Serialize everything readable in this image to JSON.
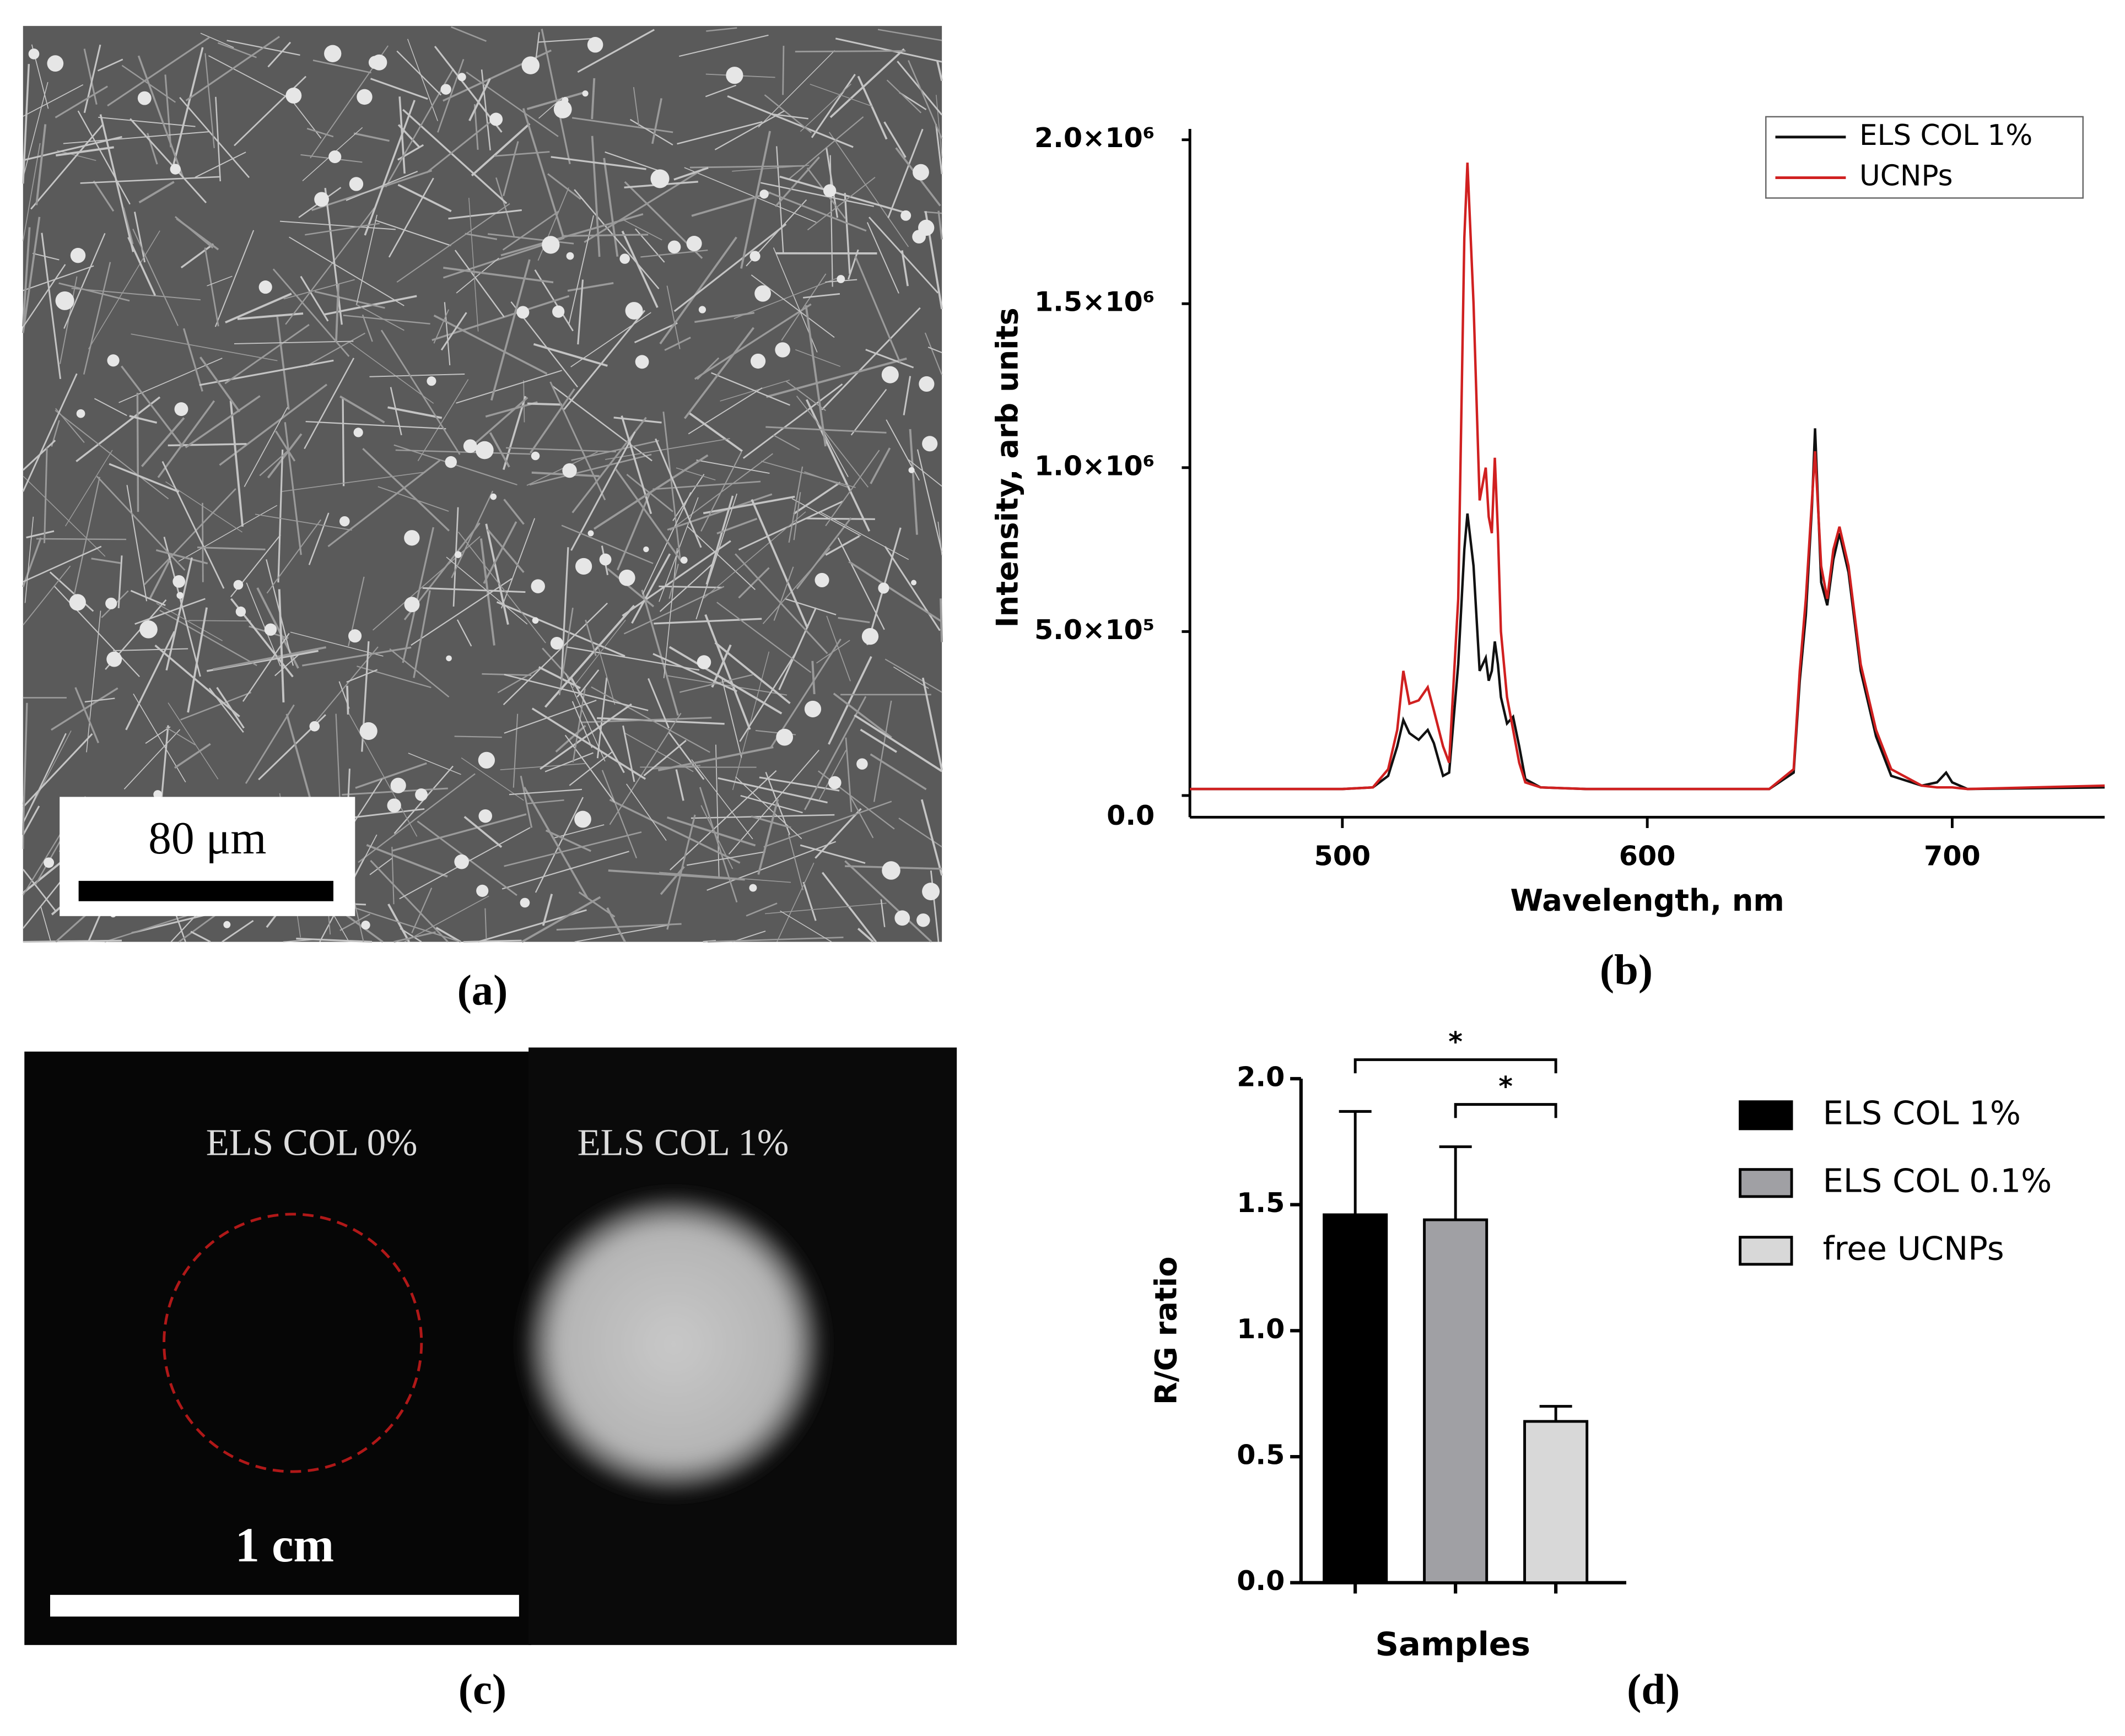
{
  "panels": {
    "a": {
      "label": "(a)",
      "scale_bar": "80 μm"
    },
    "b": {
      "label": "(b)"
    },
    "c": {
      "label": "(c)",
      "left_label": "ELS COL 0%",
      "right_label": "ELS COL 1%",
      "scale_bar": "1 cm"
    },
    "d": {
      "label": "(d)"
    }
  },
  "chart_data": [
    {
      "type": "line",
      "x_label": "Wavelength, nm",
      "y_label": "Intensity, arb units",
      "x": [
        450,
        500,
        510,
        515,
        518,
        520,
        522,
        525,
        528,
        530,
        533,
        535,
        538,
        540,
        541,
        543,
        545,
        547,
        548,
        549,
        550,
        551,
        552,
        554,
        556,
        558,
        560,
        565,
        580,
        640,
        648,
        650,
        652,
        654,
        655,
        657,
        659,
        661,
        663,
        666,
        670,
        675,
        680,
        690,
        695,
        698,
        700,
        705,
        750
      ],
      "series": [
        {
          "name": "ELS COL 1%",
          "color": "#111111",
          "values": [
            20000,
            20000,
            25000,
            60000,
            150000,
            230000,
            190000,
            170000,
            200000,
            160000,
            60000,
            70000,
            400000,
            750000,
            860000,
            700000,
            380000,
            420000,
            350000,
            380000,
            470000,
            400000,
            300000,
            220000,
            240000,
            150000,
            50000,
            25000,
            20000,
            20000,
            70000,
            350000,
            550000,
            880000,
            1120000,
            650000,
            580000,
            720000,
            800000,
            680000,
            380000,
            180000,
            60000,
            30000,
            40000,
            70000,
            40000,
            20000,
            25000
          ]
        },
        {
          "name": "UCNPs",
          "color": "#d02020",
          "values": [
            20000,
            20000,
            25000,
            80000,
            200000,
            380000,
            280000,
            290000,
            330000,
            260000,
            150000,
            100000,
            600000,
            1700000,
            1930000,
            1500000,
            900000,
            1000000,
            850000,
            800000,
            1030000,
            800000,
            500000,
            300000,
            200000,
            100000,
            40000,
            25000,
            20000,
            20000,
            80000,
            380000,
            600000,
            900000,
            1050000,
            700000,
            600000,
            750000,
            820000,
            700000,
            400000,
            200000,
            80000,
            30000,
            25000,
            25000,
            25000,
            20000,
            30000
          ]
        }
      ],
      "xlim": [
        450,
        750
      ],
      "xticks": [
        500,
        600,
        700
      ],
      "ylim": [
        0,
        2000000
      ],
      "yticks": [
        {
          "value": 0,
          "label": "0.0"
        },
        {
          "value": 500000,
          "label": "5.0×10⁵"
        },
        {
          "value": 1000000,
          "label": "1.0×10⁶"
        },
        {
          "value": 1500000,
          "label": "1.5×10⁶"
        },
        {
          "value": 2000000,
          "label": "2.0×10⁶"
        }
      ],
      "legend": "upper right"
    },
    {
      "type": "bar",
      "x_label": "Samples",
      "y_label": "R/G ratio",
      "categories": [
        "ELS COL 1%",
        "ELS COL 0.1%",
        "free UCNPs"
      ],
      "values": [
        1.46,
        1.44,
        0.64
      ],
      "errors": [
        0.41,
        0.29,
        0.06
      ],
      "colors": [
        "#000000",
        "#a0a0a4",
        "#d8d8d8"
      ],
      "ylim": [
        0,
        2
      ],
      "yticks": [
        {
          "value": 0,
          "label": "0.0"
        },
        {
          "value": 0.5,
          "label": "0.5"
        },
        {
          "value": 1,
          "label": "1.0"
        },
        {
          "value": 1.5,
          "label": "1.5"
        },
        {
          "value": 2,
          "label": "2.0"
        }
      ],
      "annotations": [
        "*",
        "*"
      ],
      "legend": "right"
    }
  ]
}
